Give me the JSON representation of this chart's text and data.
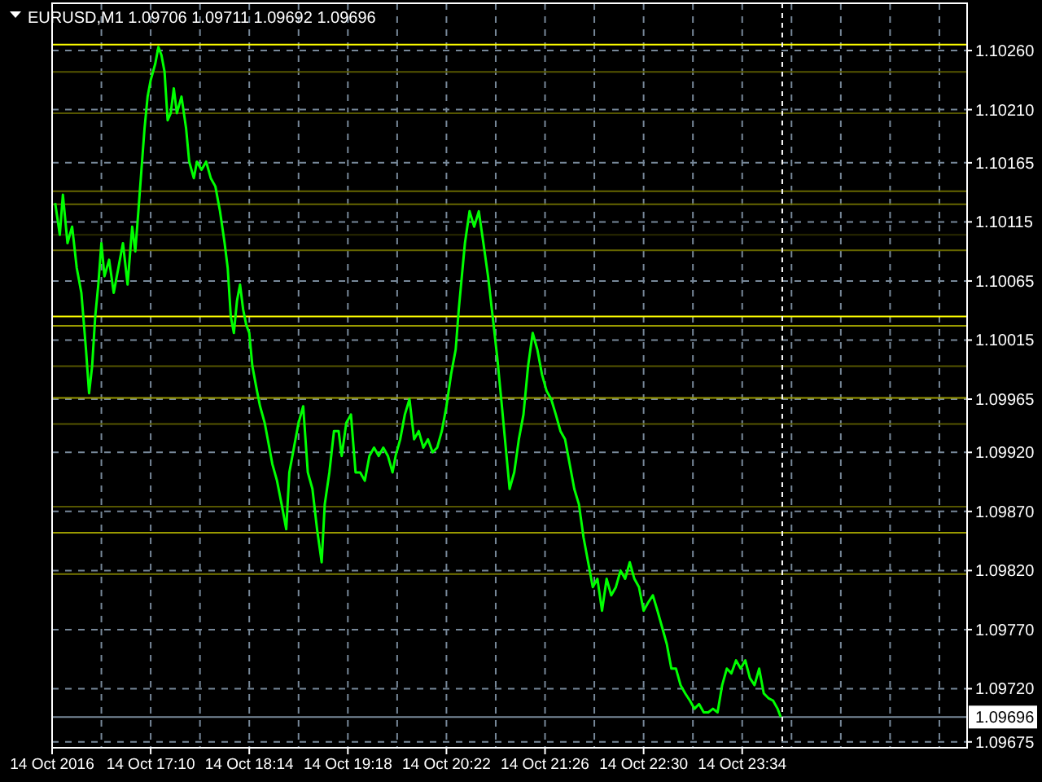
{
  "chart_data": {
    "type": "line",
    "title": "EURUSD,M1 1.09706 1.09711 1.09692 1.09696",
    "x": [
      "2016-10-14T16:08",
      "2016-10-14T16:11",
      "2016-10-14T16:13",
      "2016-10-14T16:16",
      "2016-10-14T16:19",
      "2016-10-14T16:22",
      "2016-10-14T16:25",
      "2016-10-14T16:28",
      "2016-10-14T16:30",
      "2016-10-14T16:32",
      "2016-10-14T16:34",
      "2016-10-14T16:36",
      "2016-10-14T16:38",
      "2016-10-14T16:40",
      "2016-10-14T16:43",
      "2016-10-14T16:46",
      "2016-10-14T16:49",
      "2016-10-14T16:52",
      "2016-10-14T16:55",
      "2016-10-14T16:58",
      "2016-10-14T17:00",
      "2016-10-14T17:02",
      "2016-10-14T17:04",
      "2016-10-14T17:06",
      "2016-10-14T17:08",
      "2016-10-14T17:10",
      "2016-10-14T17:13",
      "2016-10-14T17:15",
      "2016-10-14T17:17",
      "2016-10-14T17:19",
      "2016-10-14T17:21",
      "2016-10-14T17:23",
      "2016-10-14T17:25",
      "2016-10-14T17:27",
      "2016-10-14T17:30",
      "2016-10-14T17:33",
      "2016-10-14T17:35",
      "2016-10-14T17:38",
      "2016-10-14T17:40",
      "2016-10-14T17:43",
      "2016-10-14T17:46",
      "2016-10-14T17:49",
      "2016-10-14T17:52",
      "2016-10-14T17:55",
      "2016-10-14T17:58",
      "2016-10-14T18:00",
      "2016-10-14T18:02",
      "2016-10-14T18:04",
      "2016-10-14T18:06",
      "2016-10-14T18:08",
      "2016-10-14T18:10",
      "2016-10-14T18:12",
      "2016-10-14T18:14",
      "2016-10-14T18:16",
      "2016-10-14T18:19",
      "2016-10-14T18:21",
      "2016-10-14T18:24",
      "2016-10-14T18:26",
      "2016-10-14T18:29",
      "2016-10-14T18:32",
      "2016-10-14T18:35",
      "2016-10-14T18:38",
      "2016-10-14T18:40",
      "2016-10-14T18:43",
      "2016-10-14T18:46",
      "2016-10-14T18:49",
      "2016-10-14T18:52",
      "2016-10-14T18:55",
      "2016-10-14T18:58",
      "2016-10-14T19:01",
      "2016-10-14T19:03",
      "2016-10-14T19:06",
      "2016-10-14T19:09",
      "2016-10-14T19:12",
      "2016-10-14T19:14",
      "2016-10-14T19:17",
      "2016-10-14T19:20",
      "2016-10-14T19:23",
      "2016-10-14T19:26",
      "2016-10-14T19:29",
      "2016-10-14T19:32",
      "2016-10-14T19:35",
      "2016-10-14T19:38",
      "2016-10-14T19:41",
      "2016-10-14T19:44",
      "2016-10-14T19:47",
      "2016-10-14T19:49",
      "2016-10-14T19:52",
      "2016-10-14T19:55",
      "2016-10-14T19:58",
      "2016-10-14T20:01",
      "2016-10-14T20:04",
      "2016-10-14T20:07",
      "2016-10-14T20:10",
      "2016-10-14T20:13",
      "2016-10-14T20:16",
      "2016-10-14T20:19",
      "2016-10-14T20:22",
      "2016-10-14T20:25",
      "2016-10-14T20:28",
      "2016-10-14T20:30",
      "2016-10-14T20:32",
      "2016-10-14T20:34",
      "2016-10-14T20:37",
      "2016-10-14T20:40",
      "2016-10-14T20:43",
      "2016-10-14T20:46",
      "2016-10-14T20:49",
      "2016-10-14T20:52",
      "2016-10-14T20:55",
      "2016-10-14T20:58",
      "2016-10-14T21:01",
      "2016-10-14T21:03",
      "2016-10-14T21:06",
      "2016-10-14T21:09",
      "2016-10-14T21:12",
      "2016-10-14T21:15",
      "2016-10-14T21:18",
      "2016-10-14T21:21",
      "2016-10-14T21:24",
      "2016-10-14T21:27",
      "2016-10-14T21:30",
      "2016-10-14T21:33",
      "2016-10-14T21:36",
      "2016-10-14T21:39",
      "2016-10-14T21:42",
      "2016-10-14T21:45",
      "2016-10-14T21:48",
      "2016-10-14T21:51",
      "2016-10-14T21:54",
      "2016-10-14T21:57",
      "2016-10-14T22:00",
      "2016-10-14T22:03",
      "2016-10-14T22:06",
      "2016-10-14T22:09",
      "2016-10-14T22:12",
      "2016-10-14T22:15",
      "2016-10-14T22:18",
      "2016-10-14T22:21",
      "2016-10-14T22:24",
      "2016-10-14T22:27",
      "2016-10-14T22:30",
      "2016-10-14T22:33",
      "2016-10-14T22:36",
      "2016-10-14T22:39",
      "2016-10-14T22:42",
      "2016-10-14T22:45",
      "2016-10-14T22:48",
      "2016-10-14T22:51",
      "2016-10-14T22:54",
      "2016-10-14T22:57",
      "2016-10-14T23:00",
      "2016-10-14T23:03",
      "2016-10-14T23:06",
      "2016-10-14T23:09",
      "2016-10-14T23:12",
      "2016-10-14T23:15",
      "2016-10-14T23:18",
      "2016-10-14T23:21",
      "2016-10-14T23:24",
      "2016-10-14T23:27",
      "2016-10-14T23:30",
      "2016-10-14T23:33",
      "2016-10-14T23:36",
      "2016-10-14T23:39",
      "2016-10-14T23:42",
      "2016-10-14T23:45",
      "2016-10-14T23:48",
      "2016-10-14T23:51",
      "2016-10-14T23:54",
      "2016-10-14T23:57",
      "2016-10-14T23:59"
    ],
    "series": [
      {
        "color": "#00ff00",
        "values": [
          1.10131,
          1.10104,
          1.10138,
          1.10097,
          1.10111,
          1.10076,
          1.10055,
          1.10007,
          1.0997,
          1.09993,
          1.10035,
          1.10062,
          1.10097,
          1.10069,
          1.10083,
          1.10055,
          1.10076,
          1.10097,
          1.10062,
          1.10111,
          1.1009,
          1.10124,
          1.10159,
          1.10194,
          1.10221,
          1.10235,
          1.10249,
          1.10263,
          1.10256,
          1.10242,
          1.10201,
          1.10207,
          1.10228,
          1.10207,
          1.10221,
          1.10194,
          1.10166,
          1.10152,
          1.10166,
          1.10159,
          1.10166,
          1.10152,
          1.10145,
          1.10124,
          1.10097,
          1.10076,
          1.10035,
          1.10021,
          1.10048,
          1.10062,
          1.10041,
          1.10028,
          1.10021,
          1.09993,
          1.09972,
          1.09959,
          1.09945,
          1.09931,
          1.0991,
          1.09896,
          1.09876,
          1.09855,
          1.09903,
          1.09924,
          1.09945,
          1.09959,
          1.09903,
          1.09889,
          1.09855,
          1.09827,
          1.09876,
          1.09903,
          1.09938,
          1.09938,
          1.09917,
          1.09945,
          1.09952,
          1.09903,
          1.09903,
          1.09896,
          1.09917,
          1.09924,
          1.09917,
          1.09924,
          1.09917,
          1.09903,
          1.09917,
          1.09931,
          1.09952,
          1.09965,
          1.09931,
          1.09938,
          1.09924,
          1.09931,
          1.0992,
          1.09924,
          1.09938,
          1.09959,
          1.09986,
          1.10007,
          1.10041,
          1.10069,
          1.10097,
          1.10124,
          1.10111,
          1.10124,
          1.10097,
          1.10069,
          1.10035,
          1.1,
          1.09959,
          1.09917,
          1.09889,
          1.09903,
          1.09931,
          1.09952,
          1.09993,
          1.10021,
          1.10007,
          1.09986,
          1.09972,
          1.09965,
          1.09952,
          1.09938,
          1.09931,
          1.0991,
          1.09889,
          1.09876,
          1.09848,
          1.09827,
          1.09806,
          1.09813,
          1.09786,
          1.09813,
          1.09799,
          1.09806,
          1.0982,
          1.09813,
          1.09827,
          1.09813,
          1.09806,
          1.09786,
          1.09793,
          1.09799,
          1.09786,
          1.09772,
          1.09758,
          1.09737,
          1.09737,
          1.09723,
          1.09716,
          1.0971,
          1.09703,
          1.09707,
          1.097,
          1.097,
          1.09703,
          1.097,
          1.09723,
          1.09737,
          1.09733,
          1.09744,
          1.09737,
          1.09744,
          1.09729,
          1.09723,
          1.09737,
          1.09716,
          1.09712,
          1.0971,
          1.09703,
          1.09696
        ]
      }
    ],
    "xlim": [
      "2016-10-14T16:06",
      "2016-10-15T02:00"
    ],
    "xticks": [
      {
        "value": "2016-10-14T16:06",
        "label": "14 Oct 2016"
      },
      {
        "value": "2016-10-14T16:38",
        "label": null
      },
      {
        "value": "2016-10-14T17:10",
        "label": "14 Oct 17:10"
      },
      {
        "value": "2016-10-14T17:42",
        "label": null
      },
      {
        "value": "2016-10-14T18:14",
        "label": "14 Oct 18:14"
      },
      {
        "value": "2016-10-14T18:46",
        "label": null
      },
      {
        "value": "2016-10-14T19:18",
        "label": "14 Oct 19:18"
      },
      {
        "value": "2016-10-14T19:50",
        "label": null
      },
      {
        "value": "2016-10-14T20:22",
        "label": "14 Oct 20:22"
      },
      {
        "value": "2016-10-14T20:54",
        "label": null
      },
      {
        "value": "2016-10-14T21:26",
        "label": "14 Oct 21:26"
      },
      {
        "value": "2016-10-14T21:58",
        "label": null
      },
      {
        "value": "2016-10-14T22:30",
        "label": "14 Oct 22:30"
      },
      {
        "value": "2016-10-14T23:02",
        "label": null
      },
      {
        "value": "2016-10-14T23:34",
        "label": "14 Oct 23:34"
      },
      {
        "value": "2016-10-15T00:06",
        "label": null
      },
      {
        "value": "2016-10-15T00:38",
        "label": null
      },
      {
        "value": "2016-10-15T01:10",
        "label": null
      },
      {
        "value": "2016-10-15T01:42",
        "label": null
      }
    ],
    "ylim": [
      1.0967,
      1.103
    ],
    "yticks": [
      {
        "value": 1.0967499,
        "label": "1.09675"
      },
      {
        "value": 1.0972,
        "label": "1.09720"
      },
      {
        "value": 1.0977,
        "label": "1.09770"
      },
      {
        "value": 1.0982,
        "label": "1.09820"
      },
      {
        "value": 1.0987,
        "label": "1.09870"
      },
      {
        "value": 1.0992,
        "label": "1.09920"
      },
      {
        "value": 1.09965,
        "label": "1.09965"
      },
      {
        "value": 1.10015,
        "label": "1.10015"
      },
      {
        "value": 1.10065,
        "label": "1.10065"
      },
      {
        "value": 1.10115,
        "label": "1.10115"
      },
      {
        "value": 1.10165,
        "label": "1.10165"
      },
      {
        "value": 1.1021,
        "label": "1.10210"
      },
      {
        "value": 1.1026,
        "label": "1.10260"
      }
    ],
    "grid": true,
    "line_style": "solid",
    "ref_lines": [
      {
        "axis": "y",
        "value": 1.10265,
        "color": "#ffff00"
      },
      {
        "axis": "y",
        "value": 1.10242,
        "color": "#555500"
      },
      {
        "axis": "y",
        "value": 1.10207,
        "color": "#555500"
      },
      {
        "axis": "y",
        "value": 1.10141,
        "color": "#666600"
      },
      {
        "axis": "y",
        "value": 1.1013,
        "color": "#666600"
      },
      {
        "axis": "y",
        "value": 1.10104,
        "color": "#2a2a00"
      },
      {
        "axis": "y",
        "value": 1.10091,
        "color": "#666600"
      },
      {
        "axis": "y",
        "value": 1.10035,
        "color": "#ffff00"
      },
      {
        "axis": "y",
        "value": 1.10027,
        "color": "#999900"
      },
      {
        "axis": "y",
        "value": 1.09993,
        "color": "#555500"
      },
      {
        "axis": "y",
        "value": 1.09966,
        "color": "#999900"
      },
      {
        "axis": "y",
        "value": 1.09944,
        "color": "#555500"
      },
      {
        "axis": "y",
        "value": 1.09874,
        "color": "#555500"
      },
      {
        "axis": "y",
        "value": 1.09852,
        "color": "#999900"
      },
      {
        "axis": "y",
        "value": 1.09817,
        "color": "#777700"
      },
      {
        "axis": "y",
        "value": 1.09696,
        "label": "1.09696",
        "color": "#778899"
      },
      {
        "axis": "x",
        "value": "2016-10-15T00:00",
        "color": "#ffffff",
        "line_style": "dashed"
      }
    ]
  }
}
